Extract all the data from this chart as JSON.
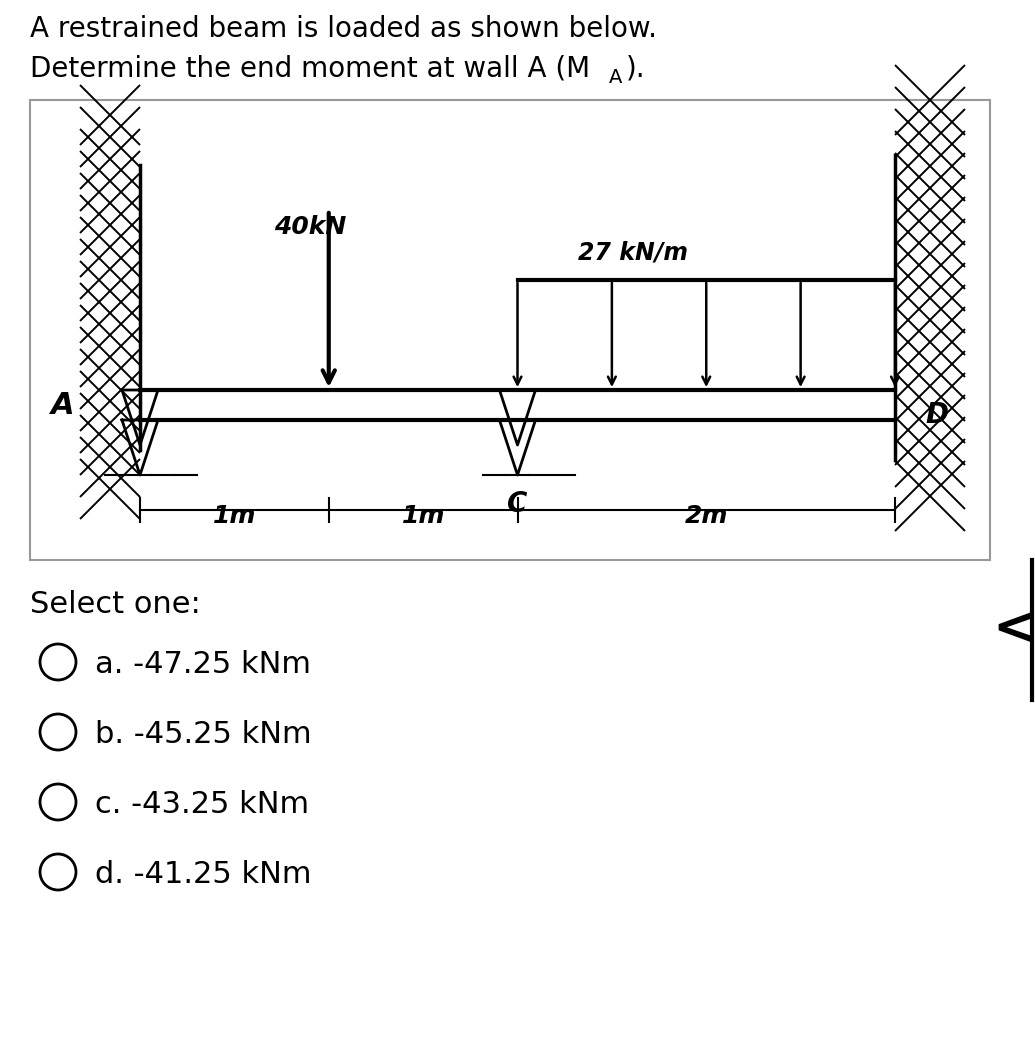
{
  "title_line1": "A restrained beam is loaded as shown below.",
  "title_line2": "Determine the end moment at wall A (M",
  "title_sub": "A",
  "title_end": ").",
  "load_label": "40kN",
  "dist_label": "27 kN/m",
  "dim1": "1m",
  "dim2": "1m",
  "dim3": "2m",
  "label_A": "A",
  "label_C": "C",
  "label_D": "D",
  "select_one": "Select one:",
  "options": [
    "a. -47.25 kNm",
    "b. -45.25 kNm",
    "c. -43.25 kNm",
    "d. -41.25 kNm"
  ],
  "bg_color": "#ffffff",
  "text_color": "#000000",
  "fig_w": 10.35,
  "fig_h": 10.37
}
